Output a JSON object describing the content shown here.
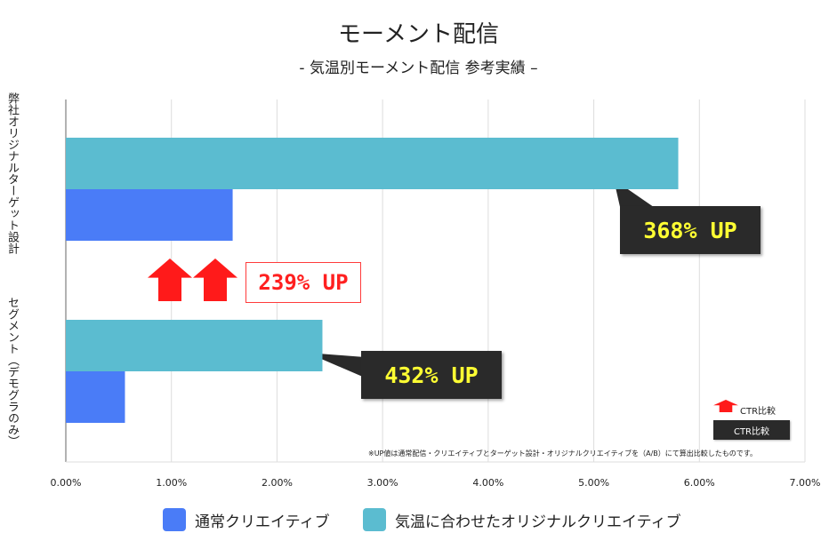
{
  "chart_data": {
    "type": "bar",
    "orientation": "horizontal",
    "title": "モーメント配信",
    "subtitle": "- 気温別モーメント配信 参考実績 –",
    "categories": [
      "弊社オリジナルターゲット設計",
      "セグメント（デモグラのみ）"
    ],
    "series": [
      {
        "name": "気温に合わせたオリジナルクリエイティブ",
        "values": [
          5.8,
          2.43
        ],
        "color": "#5bbcd0"
      },
      {
        "name": "通常クリエイティブ",
        "values": [
          1.58,
          0.56
        ],
        "color": "#4a7cf7"
      }
    ],
    "xlim": [
      0,
      7
    ],
    "x_ticks": [
      "0.00%",
      "1.00%",
      "2.00%",
      "3.00%",
      "4.00%",
      "5.00%",
      "6.00%",
      "7.00%"
    ],
    "grid": true,
    "legend_position": "bottom",
    "annotations": {
      "callout_top": "368% UP",
      "callout_bottom": "432% UP",
      "middle": "239% UP",
      "note": "※UP値は通常配信・クリエイティブとターゲット設計・オリジナルクリエイティブを（A/B）にて算出比較したものです。",
      "mini_legend_arrow": "CTR比較",
      "mini_legend_box": "CTR比較"
    }
  }
}
